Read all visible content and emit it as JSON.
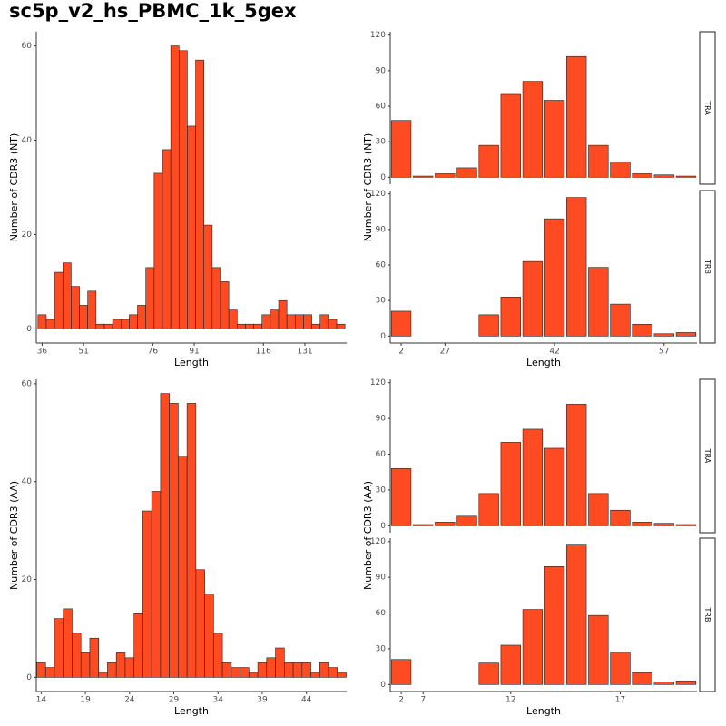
{
  "title": "sc5p_v2_hs_PBMC_1k_5gex",
  "chart_data": [
    {
      "type": "bar",
      "xlabel": "Length",
      "ylabel": "Number of CDR3 (NT)",
      "color": "#ff4b22",
      "x": [
        36,
        39,
        42,
        45,
        48,
        51,
        54,
        57,
        60,
        63,
        66,
        69,
        72,
        75,
        78,
        81,
        84,
        87,
        90,
        93,
        96,
        99,
        102,
        105,
        108,
        111,
        114,
        117,
        120,
        123,
        126,
        129,
        132,
        135,
        138,
        141,
        144
      ],
      "values": [
        3,
        2,
        12,
        14,
        9,
        5,
        8,
        1,
        1,
        2,
        2,
        3,
        5,
        13,
        33,
        38,
        60,
        59,
        43,
        57,
        22,
        13,
        10,
        4,
        1,
        1,
        1,
        3,
        4,
        6,
        3,
        3,
        3,
        1,
        3,
        2,
        1
      ],
      "xlim": [
        33.9,
        146.1
      ],
      "xticks": [
        36,
        51,
        76,
        91,
        116,
        131
      ],
      "ylim": [
        -3,
        63
      ],
      "yticks": [
        0,
        20,
        40,
        60
      ]
    },
    {
      "type": "facet-bar",
      "xlabel": "Length",
      "ylabel": "Number of CDR3 (NT)",
      "color": "#ff4b22",
      "categories": [
        2,
        null,
        27,
        null,
        null,
        null,
        null,
        42,
        null,
        null,
        null,
        null,
        57,
        null
      ],
      "facets": [
        {
          "name": "TRA",
          "values": [
            48,
            1,
            3,
            8,
            27,
            70,
            81,
            65,
            102,
            27,
            13,
            3,
            2,
            1
          ]
        },
        {
          "name": "TRB",
          "values": [
            21,
            0,
            0,
            0,
            18,
            33,
            63,
            99,
            117,
            58,
            27,
            10,
            2,
            3
          ]
        }
      ],
      "ylim": [
        -5.85,
        122.85
      ],
      "yticks": [
        0,
        30,
        60,
        90,
        120
      ]
    },
    {
      "type": "bar",
      "xlabel": "Length",
      "ylabel": "Number of CDR3 (AA)",
      "color": "#ff4b22",
      "x": [
        14,
        15,
        16,
        17,
        18,
        19,
        20,
        21,
        22,
        23,
        24,
        25,
        26,
        27,
        28,
        29,
        30,
        31,
        32,
        33,
        34,
        35,
        36,
        37,
        38,
        39,
        40,
        41,
        42,
        43,
        44,
        45,
        46,
        47,
        48
      ],
      "values": [
        3,
        2,
        12,
        14,
        9,
        5,
        8,
        1,
        3,
        5,
        4,
        13,
        34,
        38,
        58,
        56,
        45,
        56,
        22,
        17,
        9,
        3,
        2,
        2,
        1,
        3,
        4,
        6,
        3,
        3,
        3,
        1,
        3,
        2,
        1
      ],
      "xlim": [
        13.45,
        48.55
      ],
      "xticks": [
        14,
        19,
        24,
        29,
        34,
        39,
        44
      ],
      "ylim": [
        -2.9,
        60.9
      ],
      "yticks": [
        0,
        20,
        40,
        60
      ]
    },
    {
      "type": "facet-bar",
      "xlabel": "Length",
      "ylabel": "Number of CDR3 (AA)",
      "color": "#ff4b22",
      "categories": [
        2,
        7,
        null,
        null,
        null,
        12,
        null,
        null,
        null,
        null,
        17,
        null,
        null,
        null
      ],
      "facets": [
        {
          "name": "TRA",
          "values": [
            48,
            1,
            3,
            8,
            27,
            70,
            81,
            65,
            102,
            27,
            13,
            3,
            2,
            1
          ]
        },
        {
          "name": "TRB",
          "values": [
            21,
            0,
            0,
            0,
            18,
            33,
            63,
            99,
            117,
            58,
            27,
            10,
            2,
            3
          ]
        }
      ],
      "ylim": [
        -5.85,
        122.85
      ],
      "yticks": [
        0,
        30,
        60,
        90,
        120
      ]
    }
  ]
}
